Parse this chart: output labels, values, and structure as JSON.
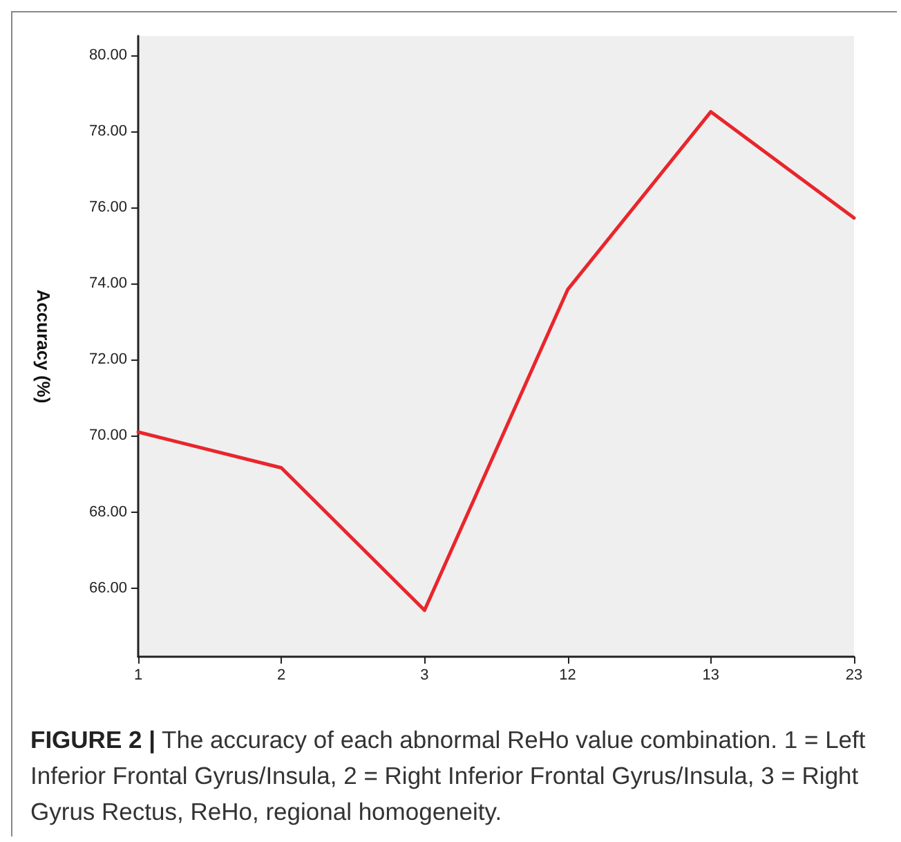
{
  "chart_data": {
    "type": "line",
    "ylabel": "Accuracy (%)",
    "categories": [
      "1",
      "2",
      "3",
      "12",
      "13",
      "23"
    ],
    "series": [
      {
        "color": "#e8262c",
        "values": [
          70.1,
          69.16,
          65.42,
          73.84,
          78.51,
          75.72
        ]
      }
    ],
    "ylim": [
      64.2,
      80.5
    ],
    "yticks": [
      {
        "value": 66,
        "label": "66.00"
      },
      {
        "value": 68,
        "label": "68.00"
      },
      {
        "value": 70,
        "label": "70.00"
      },
      {
        "value": 72,
        "label": "72.00"
      },
      {
        "value": 74,
        "label": "74.00"
      },
      {
        "value": 76,
        "label": "76.00"
      },
      {
        "value": 78,
        "label": "78.00"
      },
      {
        "value": 80,
        "label": "80.00"
      }
    ],
    "grid": false,
    "marker": "none",
    "line_style": "solid",
    "annotations": [
      "FIGURE 2 |",
      "The accuracy of each abnormal ReHo value combination. 1 = Left Inferior Frontal Gyrus/Insula, 2 = Right Inferior Frontal Gyrus/Insula, 3 = Right Gyrus Rectus, ReHo, regional homogeneity."
    ]
  }
}
